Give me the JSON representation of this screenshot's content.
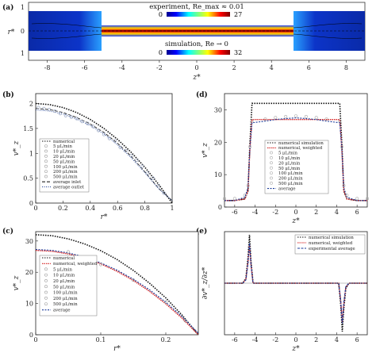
{
  "chart_data": [
    {
      "panel": "(a)",
      "type": "heatmap",
      "top_label": "experiment, Re_max ≈ 0.01",
      "bottom_label": "simulation, Re → 0",
      "top_colorbar": {
        "min": "0",
        "max": "27"
      },
      "bottom_colorbar": {
        "min": "0",
        "max": "32"
      },
      "xlabel": "z*",
      "ylabel": "r*",
      "xticks": [
        "-8",
        "-6",
        "-4",
        "-2",
        "0",
        "2",
        "4",
        "6",
        "8"
      ],
      "yticks": [
        "1",
        "0",
        "1",
        "1",
        "0",
        "1"
      ],
      "xlim": [
        -9,
        9
      ]
    },
    {
      "panel": "(b)",
      "type": "scatter",
      "xlabel": "r*",
      "ylabel": "v*_z",
      "xlim": [
        0,
        1
      ],
      "ylim": [
        0,
        2.2
      ],
      "xticks": [
        "0",
        "0.2",
        "0.4",
        "0.6",
        "0.8",
        "1"
      ],
      "yticks": [
        "0",
        "0.5",
        "1",
        "1.5",
        "2"
      ],
      "legend": [
        "numerical",
        "5 μL/min",
        "10 μL/min",
        "20 μL/min",
        "50 μL/min",
        "100 μL/min",
        "200 μL/min",
        "500 μL/min",
        "average inlet",
        "average outlet"
      ],
      "series": [
        {
          "name": "numerical",
          "x": [
            0,
            0.1,
            0.2,
            0.3,
            0.4,
            0.5,
            0.6,
            0.7,
            0.8,
            0.9,
            1.0
          ],
          "y": [
            2.0,
            1.98,
            1.92,
            1.82,
            1.68,
            1.5,
            1.28,
            1.02,
            0.72,
            0.38,
            0.0
          ]
        },
        {
          "name": "average inlet",
          "x": [
            0,
            0.1,
            0.2,
            0.3,
            0.4,
            0.5,
            0.6,
            0.7,
            0.8,
            0.9,
            1.0
          ],
          "y": [
            1.9,
            1.88,
            1.82,
            1.72,
            1.59,
            1.42,
            1.2,
            0.94,
            0.63,
            0.3,
            0.05
          ]
        },
        {
          "name": "average outlet",
          "x": [
            0,
            0.1,
            0.2,
            0.3,
            0.4,
            0.5,
            0.6,
            0.7,
            0.8,
            0.9,
            1.0
          ],
          "y": [
            1.87,
            1.85,
            1.79,
            1.69,
            1.56,
            1.39,
            1.17,
            0.91,
            0.61,
            0.29,
            0.05
          ]
        },
        {
          "name": "data",
          "x": [
            0.02,
            0.06,
            0.1,
            0.14,
            0.18,
            0.22,
            0.26,
            0.3,
            0.34,
            0.38,
            0.42,
            0.46,
            0.5,
            0.54,
            0.58,
            0.62,
            0.66,
            0.7,
            0.74,
            0.78,
            0.82,
            0.86,
            0.9,
            0.94
          ],
          "y": [
            1.92,
            1.9,
            1.88,
            1.85,
            1.8,
            1.76,
            1.73,
            1.7,
            1.64,
            1.6,
            1.54,
            1.46,
            1.38,
            1.3,
            1.25,
            1.12,
            1.05,
            0.95,
            0.86,
            0.74,
            0.6,
            0.5,
            0.35,
            0.2
          ]
        }
      ]
    },
    {
      "panel": "(c)",
      "type": "scatter",
      "xlabel": "r*",
      "ylabel": "v*_z",
      "xlim": [
        0,
        0.25
      ],
      "ylim": [
        0,
        33
      ],
      "xticks": [
        "0",
        "0.1",
        "0.2"
      ],
      "yticks": [
        "0",
        "10",
        "20",
        "30"
      ],
      "legend": [
        "numerical",
        "numerical, weighted",
        "5 μL/min",
        "10 μL/min",
        "20 μL/min",
        "50 μL/min",
        "100 μL/min",
        "200 μL/min",
        "500 μL/min",
        "average"
      ],
      "series": [
        {
          "name": "numerical",
          "x": [
            0,
            0.025,
            0.05,
            0.075,
            0.1,
            0.125,
            0.15,
            0.175,
            0.2,
            0.225,
            0.25
          ],
          "y": [
            32,
            31.7,
            30.7,
            29.1,
            26.9,
            24.1,
            20.6,
            16.5,
            11.8,
            6.3,
            0.0
          ]
        },
        {
          "name": "numerical, weighted",
          "x": [
            0,
            0.025,
            0.05,
            0.075,
            0.1,
            0.125,
            0.15,
            0.175,
            0.2,
            0.225,
            0.25
          ],
          "y": [
            27,
            26.7,
            25.9,
            24.6,
            22.7,
            20.3,
            17.4,
            13.9,
            9.9,
            5.3,
            0.0
          ]
        },
        {
          "name": "average",
          "x": [
            0,
            0.025,
            0.05,
            0.075,
            0.1,
            0.125,
            0.15,
            0.175,
            0.2,
            0.225,
            0.25
          ],
          "y": [
            27.3,
            27.0,
            26.2,
            24.9,
            23.0,
            20.7,
            17.8,
            14.4,
            10.4,
            5.8,
            0.5
          ]
        },
        {
          "name": "data",
          "x": [
            0.05,
            0.1,
            0.15,
            0.2,
            0.23
          ],
          "y": [
            26.5,
            22.5,
            17.5,
            10.5,
            4.5
          ]
        }
      ]
    },
    {
      "panel": "(d)",
      "type": "scatter",
      "xlabel": "z*",
      "ylabel": "v*_z",
      "xlim": [
        -7,
        7
      ],
      "ylim": [
        0,
        35
      ],
      "xticks": [
        "-6",
        "-4",
        "-2",
        "0",
        "2",
        "4",
        "6"
      ],
      "yticks": [
        "0",
        "10",
        "20",
        "30"
      ],
      "legend": [
        "numerical simulation",
        "numerical, weighted",
        "5 μL/min",
        "10 μL/min",
        "20 μL/min",
        "50 μL/min",
        "100 μL/min",
        "200 μL/min",
        "500 μL/min",
        "average"
      ],
      "series": [
        {
          "name": "numerical simulation",
          "x": [
            -7,
            -6,
            -5,
            -4.7,
            -4.5,
            -4.3,
            0,
            4.3,
            4.5,
            4.7,
            5,
            6,
            7
          ],
          "y": [
            2,
            2,
            2.5,
            5,
            20,
            32,
            32,
            32,
            20,
            5,
            2.5,
            2,
            2
          ]
        },
        {
          "name": "numerical, weighted",
          "x": [
            -7,
            -6,
            -5,
            -4.7,
            -4.5,
            -4.3,
            0,
            4.3,
            4.5,
            4.7,
            5,
            6,
            7
          ],
          "y": [
            2,
            2,
            2.5,
            5,
            18,
            27,
            27,
            27,
            18,
            5,
            2.5,
            2,
            2
          ]
        },
        {
          "name": "average",
          "x": [
            -7,
            -6,
            -5,
            -4.7,
            -4.5,
            -4.3,
            -3,
            -2,
            -1,
            0,
            1,
            2,
            3,
            4.3,
            4.5,
            4.7,
            5,
            6,
            7
          ],
          "y": [
            2,
            2,
            3,
            6,
            18,
            26,
            26.5,
            27,
            27.3,
            27.5,
            27.3,
            27,
            26.5,
            26,
            18,
            6,
            3,
            2,
            2
          ]
        }
      ]
    },
    {
      "panel": "(e)",
      "type": "line",
      "xlabel": "z*",
      "ylabel": "∂v*_z/∂z*",
      "xlim": [
        -7,
        7
      ],
      "ylim": [
        -80,
        80
      ],
      "xticks": [
        "-6",
        "-4",
        "-2",
        "0",
        "2",
        "4",
        "6"
      ],
      "yticks": [],
      "legend": [
        "numerical simulation",
        "numerical, weighted",
        "experimental average"
      ],
      "series": [
        {
          "name": "numerical simulation",
          "x": [
            -7,
            -5.2,
            -4.9,
            -4.7,
            -4.55,
            -4.4,
            -4.2,
            0,
            4.2,
            4.4,
            4.55,
            4.7,
            4.9,
            5.2,
            7
          ],
          "y": [
            0,
            0,
            8,
            40,
            75,
            35,
            0,
            0,
            0,
            -35,
            -75,
            -40,
            -8,
            0,
            0
          ]
        },
        {
          "name": "numerical, weighted",
          "x": [
            -7,
            -5.2,
            -4.9,
            -4.7,
            -4.55,
            -4.4,
            -4.2,
            0,
            4.2,
            4.4,
            4.55,
            4.7,
            4.9,
            5.2,
            7
          ],
          "y": [
            0,
            0,
            6,
            32,
            60,
            28,
            0,
            0,
            0,
            -28,
            -60,
            -32,
            -6,
            0,
            0
          ]
        },
        {
          "name": "experimental average",
          "x": [
            -7,
            -5.2,
            -4.9,
            -4.7,
            -4.55,
            -4.4,
            -4.2,
            0,
            4.2,
            4.4,
            4.55,
            4.7,
            4.9,
            5.2,
            7
          ],
          "y": [
            0,
            0,
            5,
            30,
            62,
            28,
            0,
            0,
            0,
            -28,
            -62,
            -30,
            -5,
            0,
            0
          ]
        }
      ]
    }
  ]
}
